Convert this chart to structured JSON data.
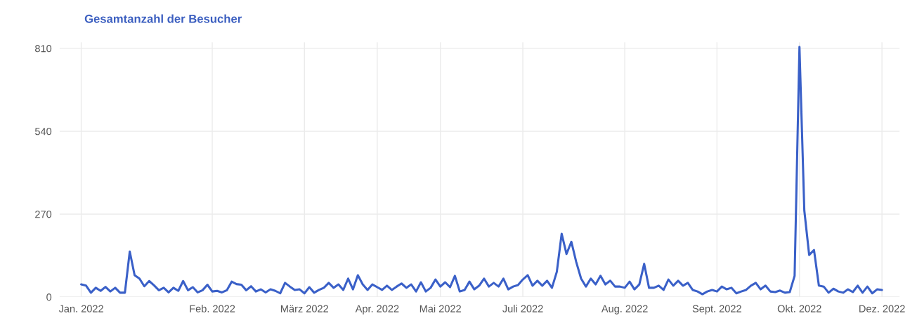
{
  "chart_data": {
    "type": "line",
    "title": "Gesamtanzahl der Besucher",
    "categories": [
      "Jan. 2022",
      null,
      null,
      null,
      null,
      null,
      null,
      null,
      null,
      null,
      null,
      null,
      null,
      null,
      null,
      null,
      null,
      null,
      null,
      null,
      null,
      null,
      null,
      null,
      null,
      null,
      null,
      "Feb. 2022",
      null,
      null,
      null,
      null,
      null,
      null,
      null,
      null,
      null,
      null,
      null,
      null,
      null,
      null,
      null,
      null,
      null,
      null,
      "März 2022",
      null,
      null,
      null,
      null,
      null,
      null,
      null,
      null,
      null,
      null,
      null,
      null,
      null,
      null,
      "Apr. 2022",
      null,
      null,
      null,
      null,
      null,
      null,
      null,
      null,
      null,
      null,
      null,
      null,
      "Mai 2022",
      null,
      null,
      null,
      null,
      null,
      null,
      null,
      null,
      null,
      null,
      null,
      null,
      null,
      null,
      null,
      null,
      "Juli 2022",
      null,
      null,
      null,
      null,
      null,
      null,
      null,
      null,
      null,
      null,
      null,
      null,
      null,
      null,
      null,
      null,
      null,
      null,
      null,
      null,
      "Aug. 2022",
      null,
      null,
      null,
      null,
      null,
      null,
      null,
      null,
      null,
      null,
      null,
      null,
      null,
      null,
      null,
      null,
      null,
      null,
      "Sept. 2022",
      null,
      null,
      null,
      null,
      null,
      null,
      null,
      null,
      null,
      null,
      null,
      null,
      null,
      null,
      null,
      null,
      "Okt. 2022",
      null,
      null,
      null,
      null,
      null,
      null,
      null,
      null,
      null,
      null,
      null,
      null,
      null,
      null,
      null,
      null,
      "Dez. 2022"
    ],
    "series": [
      {
        "color": "#3a60c8",
        "values": [
          41,
          37,
          14,
          30,
          20,
          33,
          18,
          30,
          14,
          14,
          148,
          71,
          60,
          35,
          52,
          38,
          22,
          30,
          15,
          30,
          20,
          52,
          22,
          32,
          15,
          22,
          40,
          18,
          20,
          15,
          22,
          50,
          42,
          40,
          22,
          35,
          18,
          25,
          15,
          25,
          20,
          12,
          46,
          34,
          23,
          25,
          12,
          32,
          14,
          23,
          30,
          46,
          30,
          41,
          23,
          60,
          25,
          71,
          41,
          23,
          41,
          32,
          23,
          37,
          23,
          34,
          44,
          30,
          41,
          18,
          48,
          18,
          30,
          57,
          34,
          48,
          32,
          69,
          18,
          23,
          50,
          25,
          37,
          60,
          34,
          46,
          34,
          60,
          25,
          34,
          39,
          57,
          71,
          37,
          53,
          37,
          53,
          30,
          82,
          206,
          140,
          180,
          114,
          60,
          34,
          60,
          41,
          69,
          41,
          53,
          34,
          34,
          30,
          50,
          25,
          41,
          108,
          30,
          30,
          37,
          23,
          57,
          37,
          53,
          37,
          46,
          23,
          18,
          9,
          18,
          23,
          18,
          34,
          25,
          30,
          12,
          18,
          23,
          37,
          46,
          25,
          37,
          18,
          16,
          21,
          14,
          16,
          69,
          815,
          282,
          137,
          153,
          37,
          34,
          14,
          27,
          18,
          14,
          25,
          16,
          37,
          14,
          34,
          12,
          25,
          23
        ]
      }
    ],
    "ylim": [
      0,
      830
    ],
    "yticks": [
      0,
      270,
      540,
      810
    ],
    "grid": true,
    "marker": "none",
    "line_style": "solid"
  }
}
